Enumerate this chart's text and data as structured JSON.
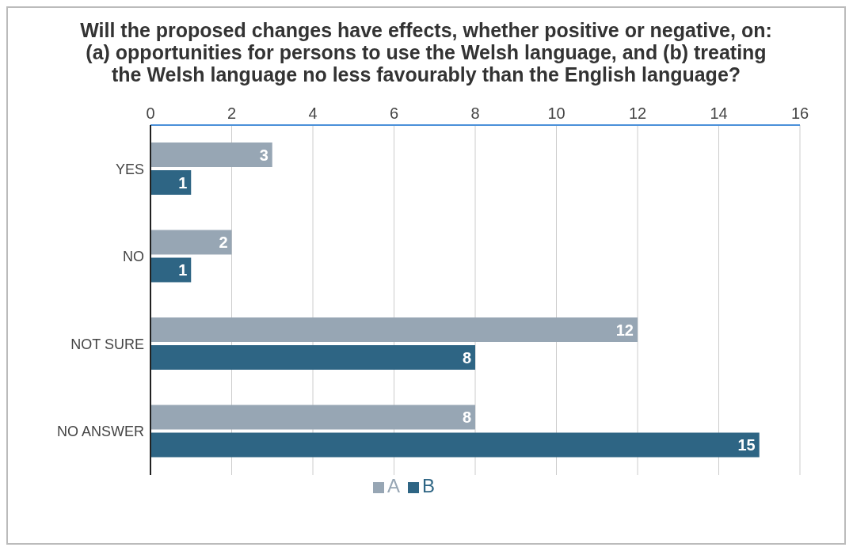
{
  "chart_data": {
    "type": "bar",
    "orientation": "horizontal",
    "title": "Will the proposed changes have effects, whether positive or negative, on: (a) opportunities for persons to use the Welsh language, and (b) treating the Welsh language no less favourably than the English language?",
    "categories": [
      "YES",
      "NO",
      "NOT SURE",
      "NO ANSWER"
    ],
    "series": [
      {
        "name": "A",
        "color": "#97a6b4",
        "values": [
          3,
          2,
          12,
          8
        ]
      },
      {
        "name": "B",
        "color": "#2e6584",
        "values": [
          1,
          1,
          8,
          15
        ]
      }
    ],
    "xlim": [
      0,
      16
    ],
    "xticks": [
      0,
      2,
      4,
      6,
      8,
      10,
      12,
      14,
      16
    ],
    "grid": "x",
    "legend": "bottom",
    "data_labels": true
  }
}
